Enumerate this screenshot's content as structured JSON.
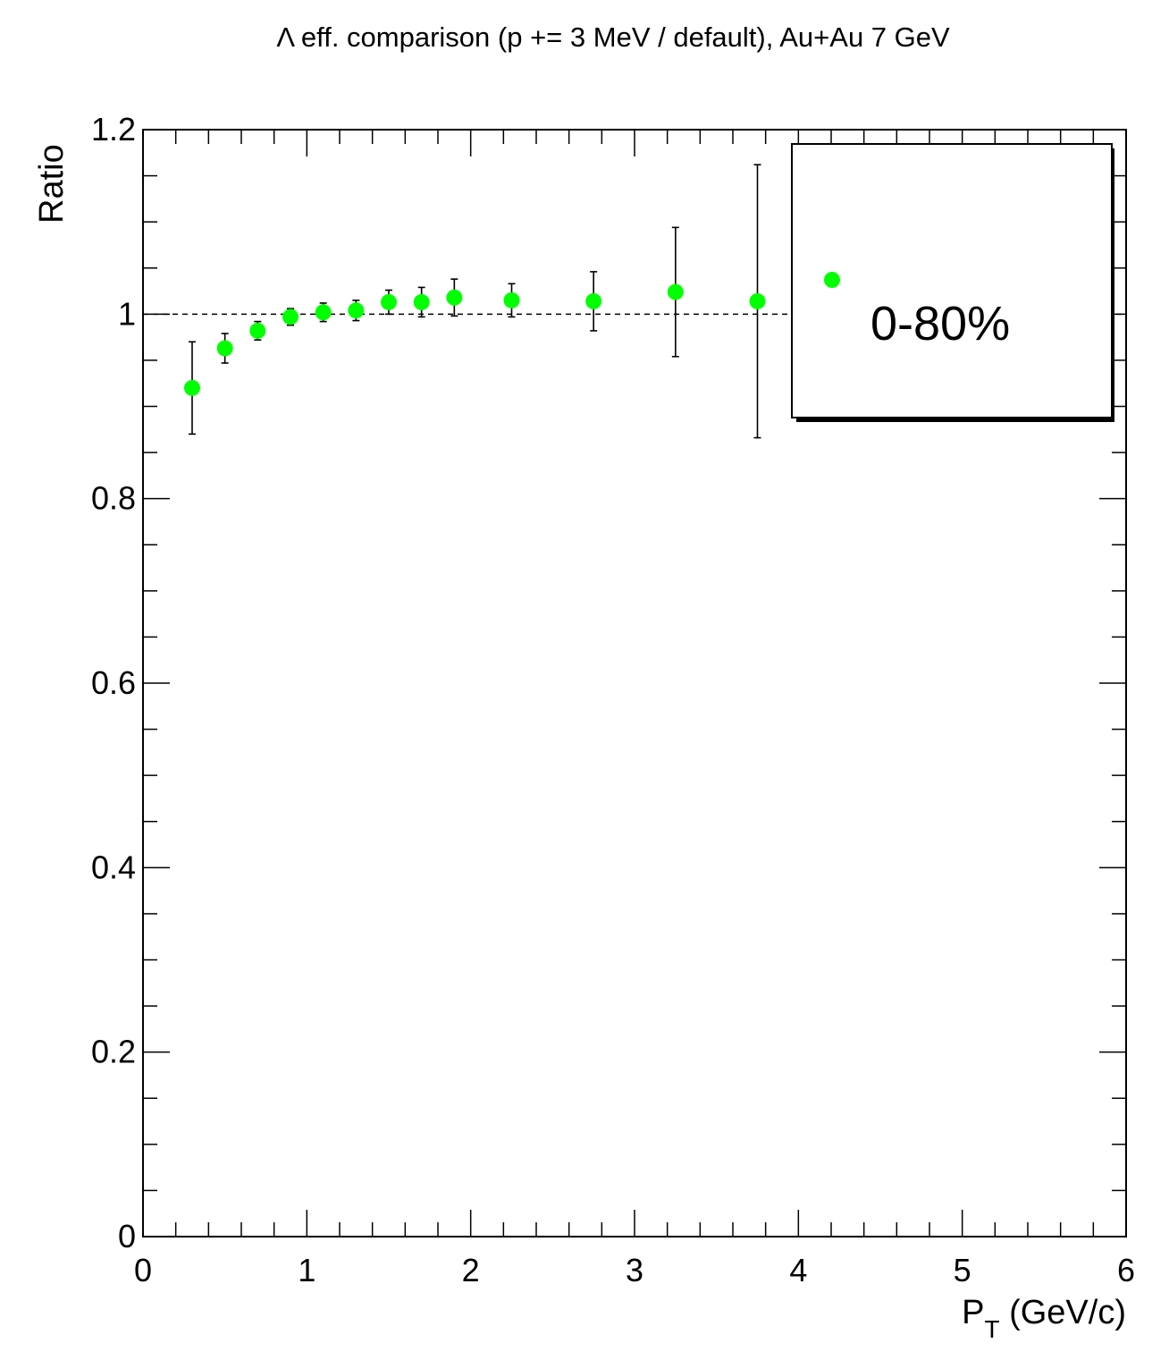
{
  "chart_data": {
    "type": "scatter",
    "title": "Λ eff. comparison (p += 3 MeV / default), Au+Au 7 GeV",
    "xlabel": {
      "main": "P",
      "sub": "T",
      "rest": " (GeV/c)"
    },
    "ylabel": "Ratio",
    "xlim": [
      0,
      6
    ],
    "ylim": [
      0,
      1.2
    ],
    "x_ticks": [
      0,
      1,
      2,
      3,
      4,
      5,
      6
    ],
    "x_tick_labels": [
      "0",
      "1",
      "2",
      "3",
      "4",
      "5",
      "6"
    ],
    "y_ticks": [
      0,
      0.2,
      0.4,
      0.6,
      0.8,
      1.0,
      1.2
    ],
    "y_tick_labels": [
      "0",
      "0.2",
      "0.4",
      "0.6",
      "0.8",
      "1",
      "1.2"
    ],
    "reference_line": 1.0,
    "grid": false,
    "legend": {
      "placement": "top-right",
      "entries": [
        {
          "label": "0-80%",
          "color": "#00ff00"
        }
      ]
    },
    "series": [
      {
        "name": "0-80%",
        "color": "#00ff00",
        "x": [
          0.3,
          0.5,
          0.7,
          0.9,
          1.1,
          1.3,
          1.5,
          1.7,
          1.9,
          2.25,
          2.75,
          3.25,
          3.75
        ],
        "y": [
          0.92,
          0.963,
          0.982,
          0.997,
          1.002,
          1.004,
          1.013,
          1.013,
          1.018,
          1.015,
          1.014,
          1.024,
          1.014
        ],
        "yerr": [
          0.05,
          0.016,
          0.01,
          0.009,
          0.01,
          0.011,
          0.013,
          0.016,
          0.02,
          0.018,
          0.032,
          0.07,
          0.148
        ]
      }
    ]
  }
}
